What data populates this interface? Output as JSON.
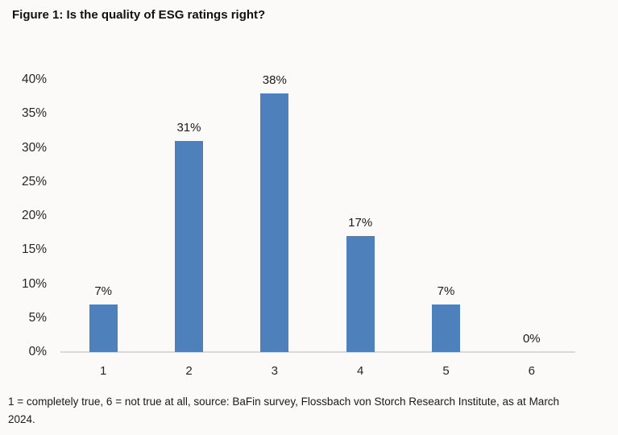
{
  "title": "Figure 1: Is the quality of ESG ratings right?",
  "footnote": {
    "line1": "1 = completely true, 6 = not true at all, source: BaFin survey, Flossbach von Storch Research Institute, as at March",
    "line2": "2024."
  },
  "colors": {
    "bar": "#4e80bc",
    "axis_line": "#d9d9d9",
    "background": "#fbfaf9",
    "text": "#1a1a1a"
  },
  "chart_data": {
    "type": "bar",
    "categories": [
      "1",
      "2",
      "3",
      "4",
      "5",
      "6"
    ],
    "values": [
      7,
      31,
      38,
      17,
      7,
      0
    ],
    "value_labels": [
      "7%",
      "31%",
      "38%",
      "17%",
      "7%",
      "0%"
    ],
    "title": "Figure 1: Is the quality of ESG ratings right?",
    "xlabel": "",
    "ylabel": "",
    "ylim": [
      0,
      40
    ],
    "yticks": [
      0,
      5,
      10,
      15,
      20,
      25,
      30,
      35,
      40
    ],
    "ytick_labels": [
      "0%",
      "5%",
      "10%",
      "15%",
      "20%",
      "25%",
      "30%",
      "35%",
      "40%"
    ],
    "grid": false,
    "legend_position": "none",
    "bar_color": "#4e80bc"
  }
}
